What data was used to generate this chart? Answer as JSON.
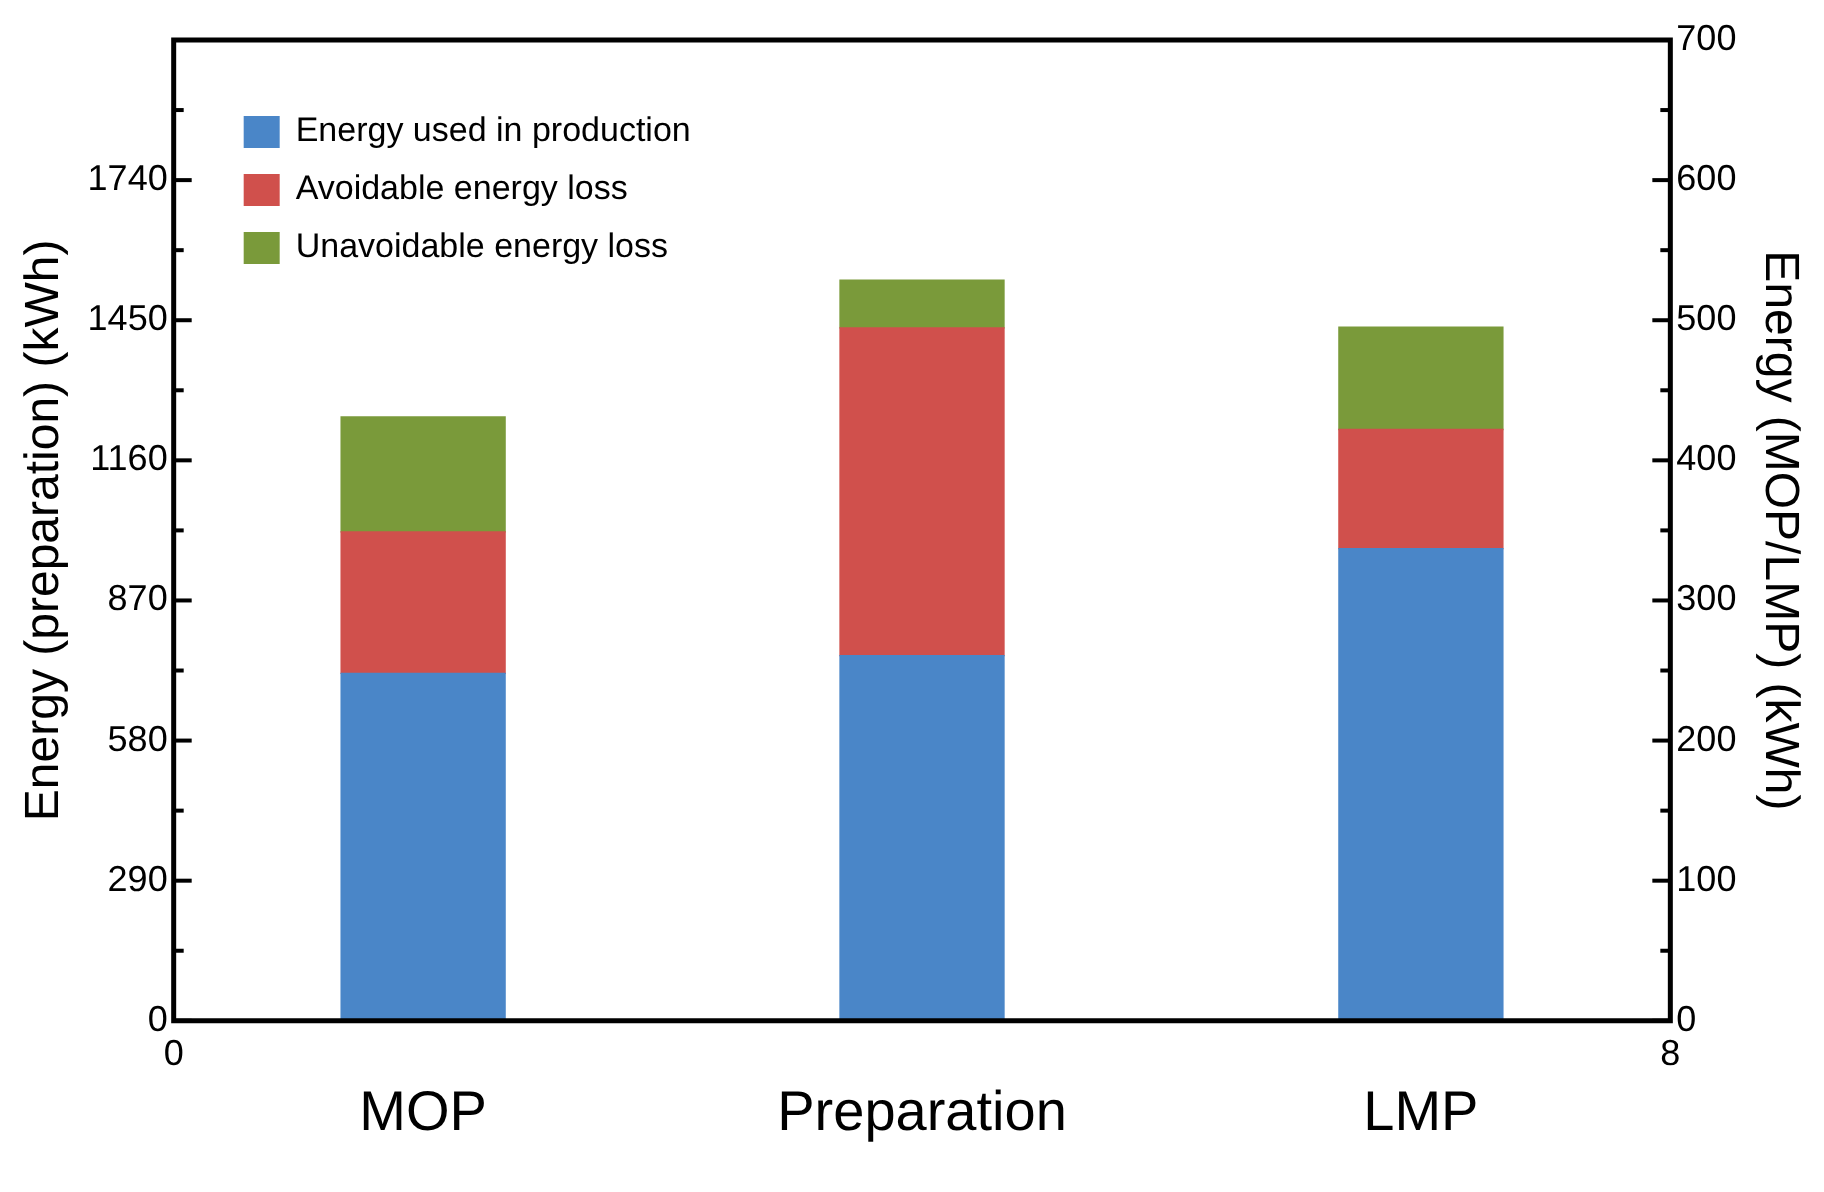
{
  "chart_data": {
    "type": "bar",
    "stacked": true,
    "ylabel": "Energy (preparation) (kWh)",
    "y2label": "Energy (MOP/LMP) (kWh)",
    "categories": [
      "MOP",
      "Preparation",
      "LMP"
    ],
    "series": [
      {
        "name": "Energy used in production",
        "color": "#4a86c8",
        "axis": "y",
        "values": [
          null,
          756,
          null
        ]
      },
      {
        "name": "Avoidable energy loss",
        "color": "#d0504c",
        "axis": "y",
        "values": [
          null,
          678,
          null
        ]
      },
      {
        "name": "Unavoidable energy loss",
        "color": "#7a9a3a",
        "axis": "y",
        "values": [
          null,
          99,
          null
        ]
      },
      {
        "color": "#4a86c8",
        "axis": "y2",
        "values": [
          248,
          null,
          337
        ]
      },
      {
        "color": "#d0504c",
        "axis": "y2",
        "values": [
          101,
          null,
          85
        ]
      },
      {
        "color": "#7a9a3a",
        "axis": "y2",
        "values": [
          82,
          null,
          73
        ]
      }
    ],
    "annotations": [
      "0",
      "8"
    ],
    "ylim": [
      0,
      2030
    ],
    "yticks": [
      0,
      {
        "value": 145,
        "label": null
      },
      290,
      {
        "value": 435,
        "label": null
      },
      580,
      {
        "value": 725,
        "label": null
      },
      870,
      {
        "value": 1015,
        "label": null
      },
      1160,
      {
        "value": 1305,
        "label": null
      },
      1450,
      {
        "value": 1595,
        "label": null
      },
      1740,
      {
        "value": 1885,
        "label": null
      }
    ],
    "y2lim": [
      0,
      700
    ],
    "y2ticks": [
      0,
      {
        "value": 50,
        "label": null
      },
      100,
      {
        "value": 150,
        "label": null
      },
      200,
      {
        "value": 250,
        "label": null
      },
      300,
      {
        "value": 350,
        "label": null
      },
      400,
      {
        "value": 450,
        "label": null
      },
      500,
      {
        "value": 550,
        "label": null
      },
      600,
      {
        "value": 650,
        "label": null
      },
      700
    ],
    "grid": false,
    "legend": "top left"
  }
}
